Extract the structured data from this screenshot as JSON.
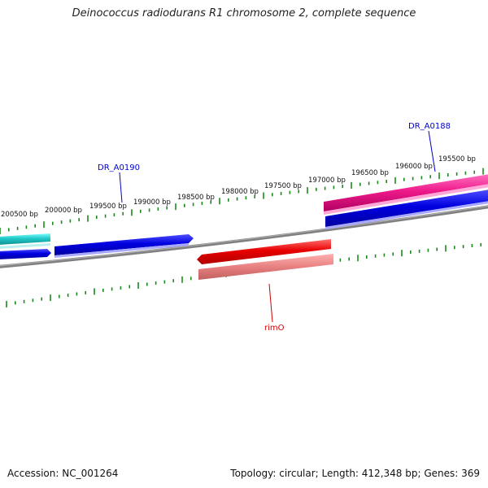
{
  "title": "Deinococcus radiodurans R1 chromosome 2, complete sequence",
  "footer": {
    "accession": "Accession: NC_001264",
    "summary": "Topology: circular; Length: 412,348 bp; Genes: 369"
  },
  "ticks": [
    "200500 bp",
    "200000 bp",
    "199500 bp",
    "199000 bp",
    "198500 bp",
    "198000 bp",
    "197500 bp",
    "197000 bp",
    "196500 bp",
    "196000 bp",
    "195500 bp"
  ],
  "gene_labels": [
    {
      "text": "DR_A0190",
      "color": "#0000cc"
    },
    {
      "text": "DR_A0188",
      "color": "#0000cc"
    },
    {
      "text": "rimO",
      "color": "#cc0000"
    }
  ],
  "colors": {
    "backbone": "#808080",
    "ticks": "#1a8a1a",
    "forward_gene": "#0000e0",
    "cyan_feature": "#20c8c8",
    "magenta_feature": "#ee1a8a",
    "reverse_gene": "#e80000",
    "reverse_feature": "#e88080"
  }
}
